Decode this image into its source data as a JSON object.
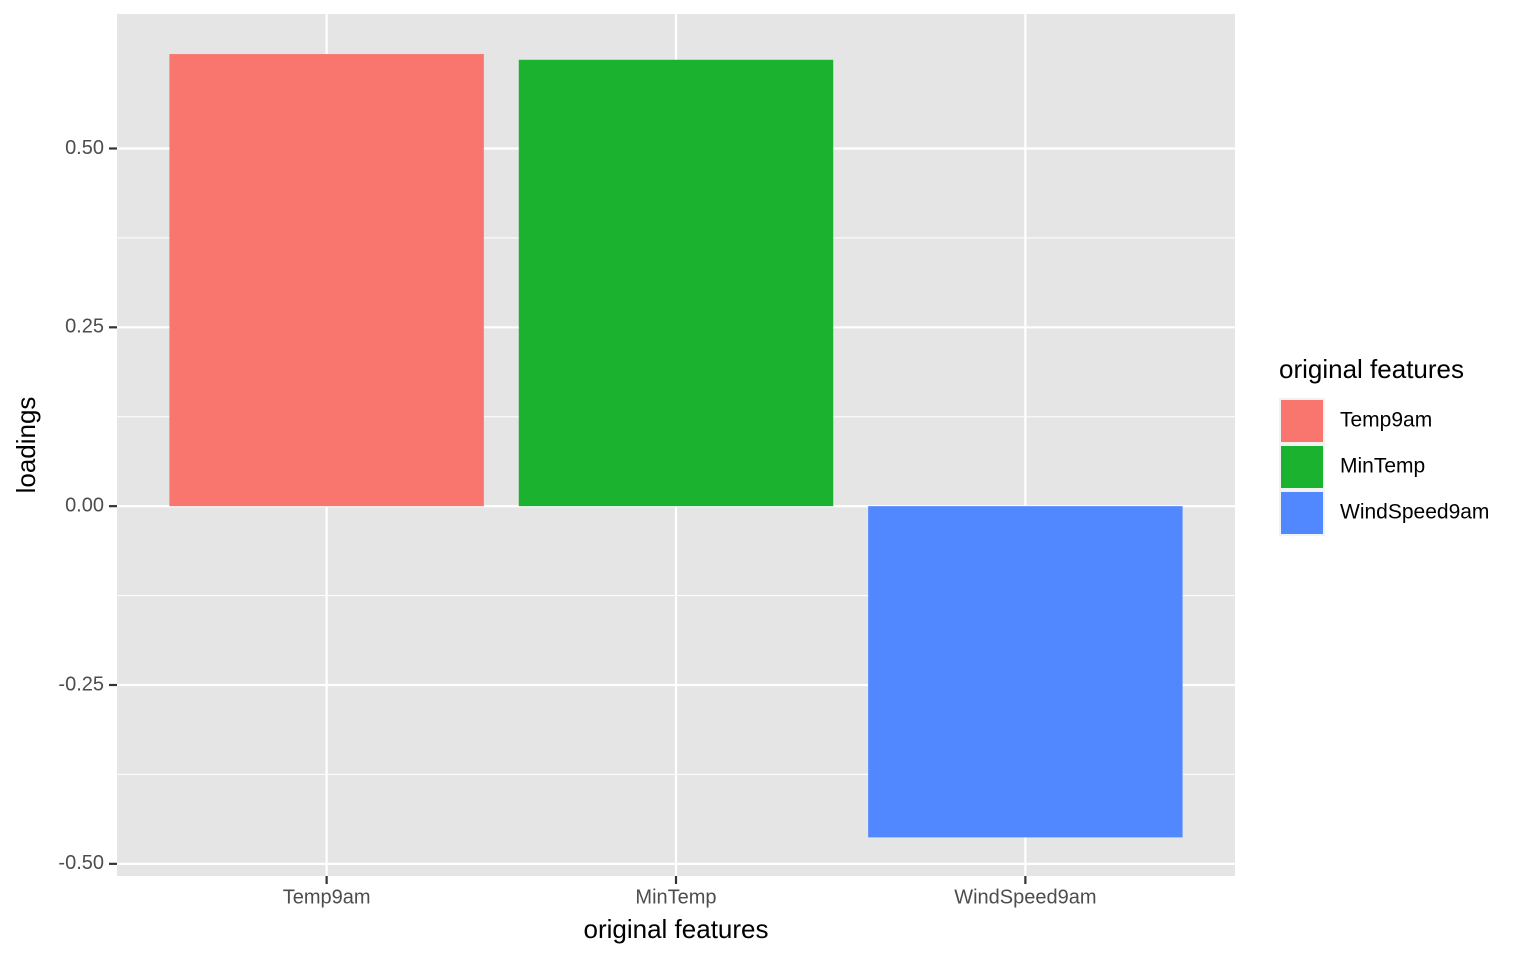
{
  "chart_data": {
    "type": "bar",
    "x_label": "original features",
    "y_label": "loadings",
    "legend_title": "original features",
    "categories": [
      "Temp9am",
      "MinTemp",
      "WindSpeed9am"
    ],
    "values": [
      0.632,
      0.624,
      -0.463
    ],
    "colors": [
      "#f8766d",
      "#1ab22f",
      "#5187ff"
    ],
    "ylim": [
      -0.517,
      0.688
    ],
    "yticks": [
      {
        "value": -0.5,
        "label": "-0.50"
      },
      {
        "value": -0.25,
        "label": "-0.25"
      },
      {
        "value": 0,
        "label": "0.00"
      },
      {
        "value": 0.25,
        "label": "0.25"
      },
      {
        "value": 0.5,
        "label": "0.50"
      }
    ],
    "grid": true,
    "legend_position": "right"
  }
}
